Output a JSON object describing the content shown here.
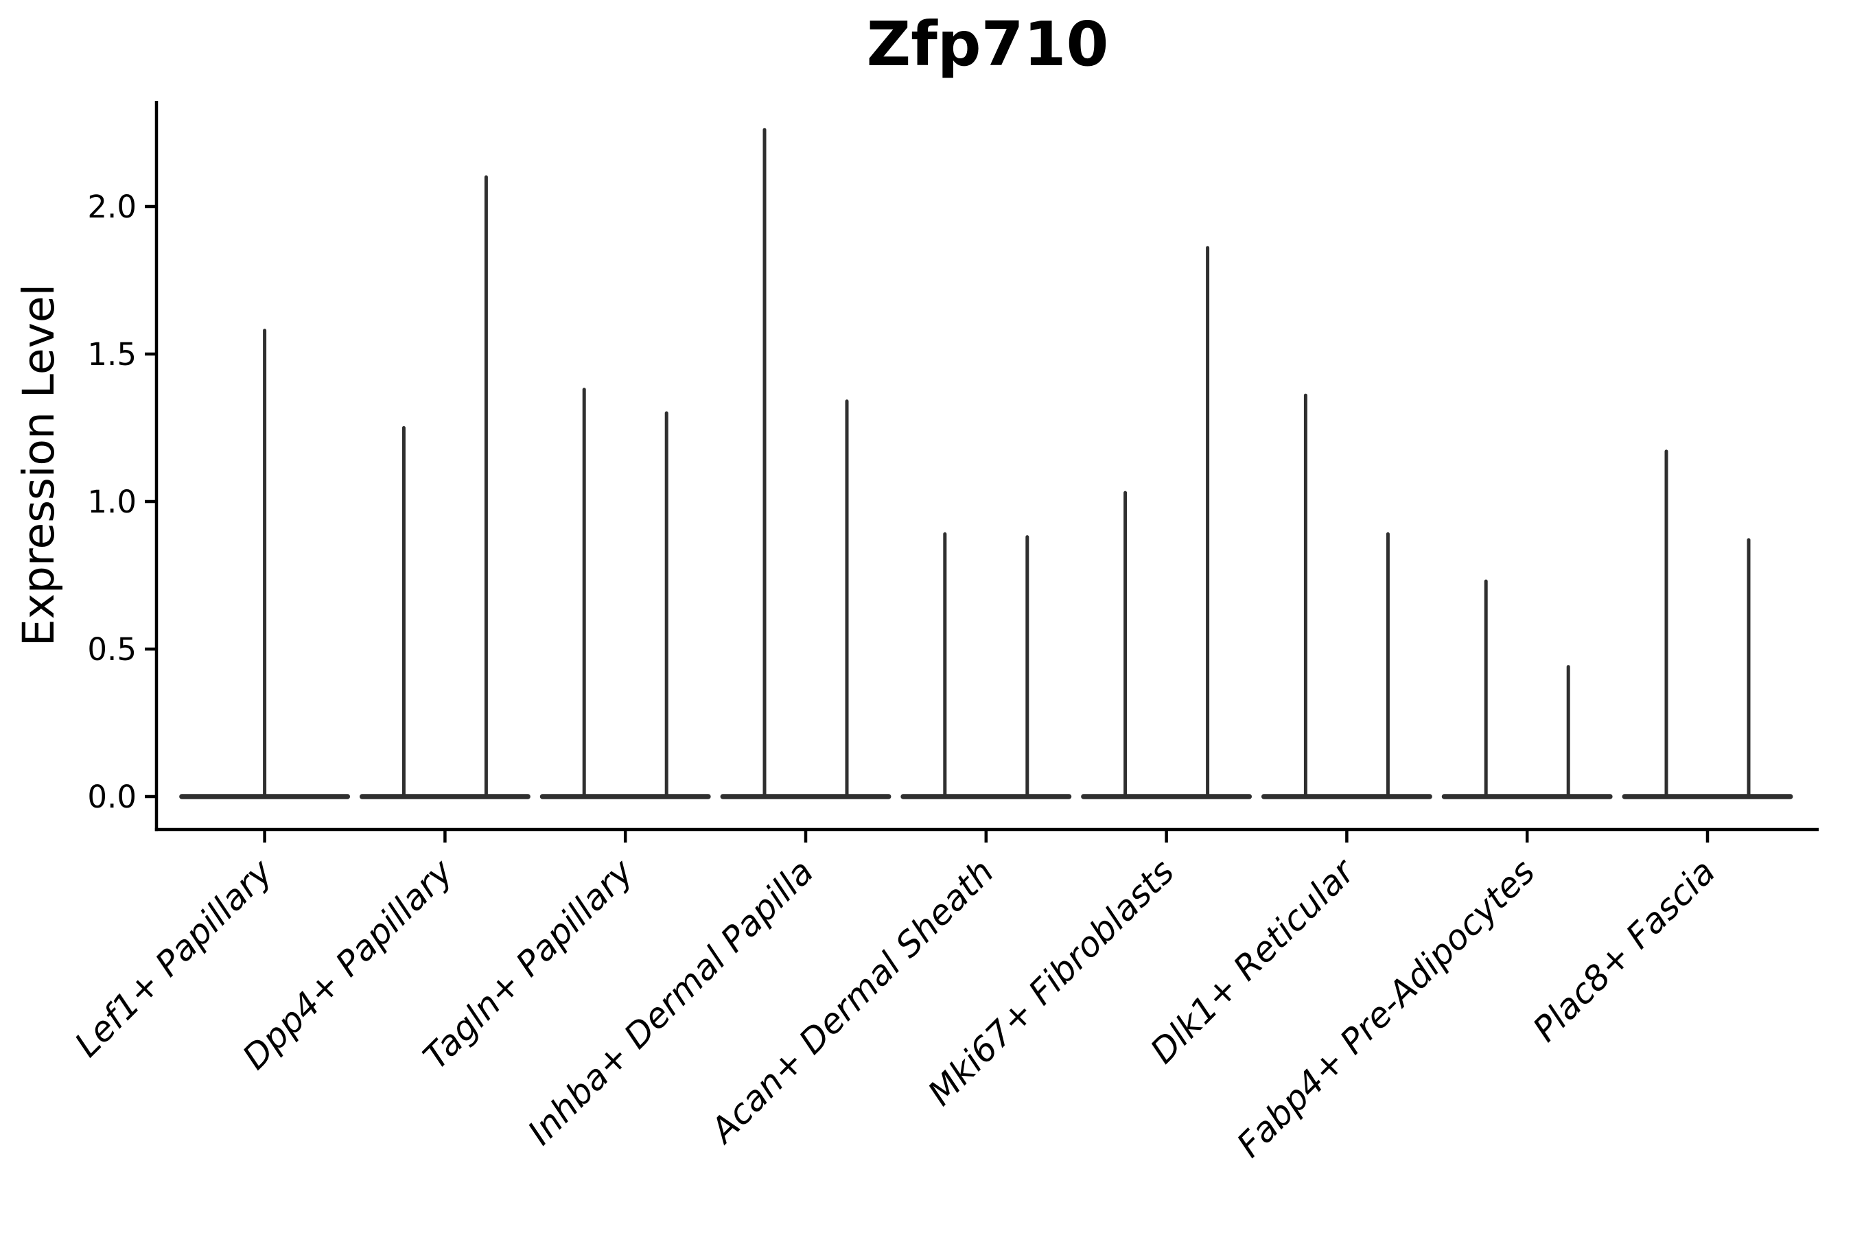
{
  "figure": {
    "background_color": "#ffffff",
    "axis_color": "#000000",
    "violin_color": "#2f2f2f"
  },
  "chart_data": {
    "type": "violin",
    "title": "Zfp710",
    "ylabel": "Expression Level",
    "xlabel": "",
    "grid": false,
    "legend": null,
    "ylim": [
      -0.11,
      2.36
    ],
    "yticks": [
      0.0,
      0.5,
      1.0,
      1.5,
      2.0
    ],
    "ytick_labels": [
      "0.0",
      "0.5",
      "1.0",
      "1.5",
      "2.0"
    ],
    "baseline_value": 0.0,
    "categories": [
      "Lef1+ Papillary",
      "Dpp4+ Papillary",
      "Tagln+ Papillary",
      "Inhba+ Dermal Papilla",
      "Acan+ Dermal Sheath",
      "Mki67+ Fibroblasts",
      "Dlk1+ Reticular",
      "Fabp4+ Pre-Adipocytes",
      "Plac8+ Fascia"
    ],
    "violins": [
      {
        "category": "Lef1+ Papillary",
        "spike_max_values": [
          1.58
        ]
      },
      {
        "category": "Dpp4+ Papillary",
        "spike_max_values": [
          1.25,
          2.1
        ]
      },
      {
        "category": "Tagln+ Papillary",
        "spike_max_values": [
          1.38,
          1.3
        ]
      },
      {
        "category": "Inhba+ Dermal Papilla",
        "spike_max_values": [
          2.26,
          1.34
        ]
      },
      {
        "category": "Acan+ Dermal Sheath",
        "spike_max_values": [
          0.89,
          0.88
        ]
      },
      {
        "category": "Mki67+ Fibroblasts",
        "spike_max_values": [
          1.03,
          1.86
        ]
      },
      {
        "category": "Dlk1+ Reticular",
        "spike_max_values": [
          1.36,
          0.89
        ]
      },
      {
        "category": "Fabp4+ Pre-Adipocytes",
        "spike_max_values": [
          0.73,
          0.44
        ]
      },
      {
        "category": "Plac8+ Fascia",
        "spike_max_values": [
          1.17,
          0.87
        ]
      }
    ],
    "style_note": "Sparse single-cell expression violins: each violin collapses to a flat bar at 0 with a thin vertical spike up to its maximum expression value."
  }
}
